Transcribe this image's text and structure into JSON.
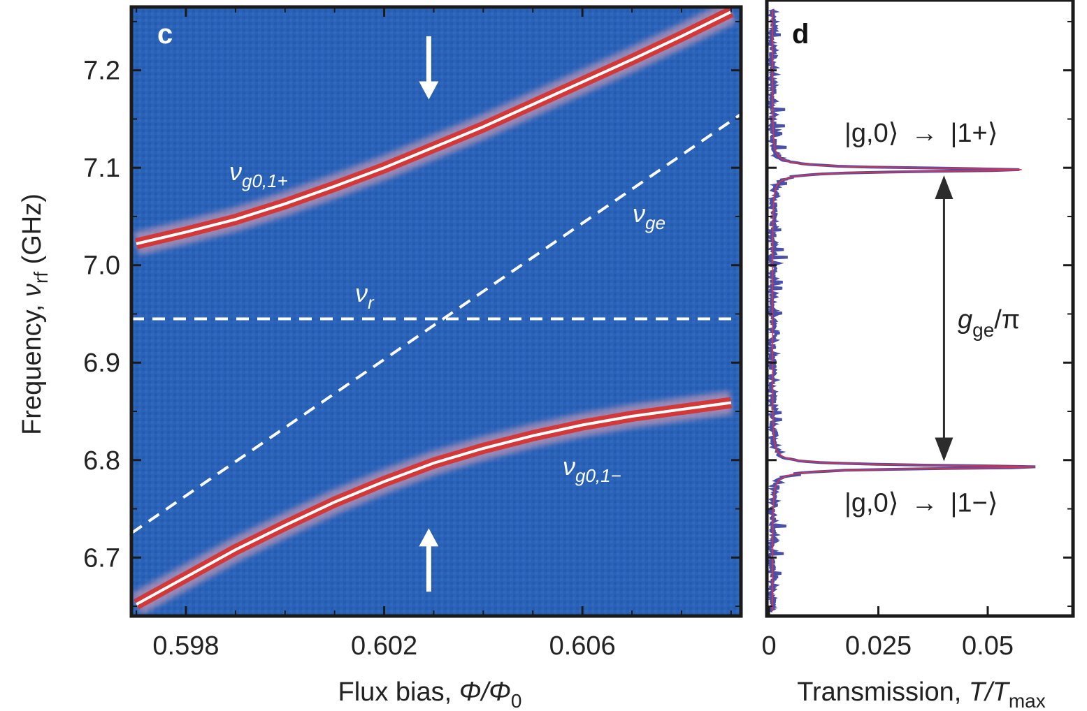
{
  "chart_data": [
    {
      "panel": "c",
      "type": "heatmap",
      "xlabel_prefix": "Flux bias, ",
      "xlabel_var": "Φ/Φ",
      "xlabel_sub": "0",
      "ylabel_prefix": "Frequency, ",
      "ylabel_var": "ν",
      "ylabel_sub": "rf",
      "ylabel_unit": " (GHz)",
      "xlim": [
        0.5969,
        0.6092
      ],
      "ylim": [
        6.64,
        7.265
      ],
      "x_ticks": [
        0.598,
        0.602,
        0.606
      ],
      "x_tick_labels": [
        "0.598",
        "0.602",
        "0.606"
      ],
      "y_ticks": [
        6.7,
        6.8,
        6.9,
        7.0,
        7.1,
        7.2
      ],
      "y_tick_labels": [
        "6.7",
        "6.8",
        "6.9",
        "7.0",
        "7.1",
        "7.2"
      ],
      "background_color": "#2a62b8",
      "resonance_color": "#d9302b",
      "series": [
        {
          "label_var": "ν",
          "label_sub": "g0,1+",
          "style": "solid-white",
          "x": [
            0.597,
            0.598,
            0.599,
            0.6,
            0.601,
            0.602,
            0.603,
            0.604,
            0.605,
            0.606,
            0.607,
            0.608,
            0.609
          ],
          "y": [
            7.022,
            7.034,
            7.047,
            7.063,
            7.081,
            7.1,
            7.121,
            7.142,
            7.165,
            7.188,
            7.211,
            7.235,
            7.26
          ]
        },
        {
          "label_var": "ν",
          "label_sub": "g0,1−",
          "style": "solid-white",
          "x": [
            0.597,
            0.598,
            0.599,
            0.6,
            0.601,
            0.602,
            0.603,
            0.604,
            0.605,
            0.606,
            0.607,
            0.608,
            0.609
          ],
          "y": [
            6.652,
            6.68,
            6.708,
            6.733,
            6.757,
            6.778,
            6.797,
            6.812,
            6.825,
            6.836,
            6.845,
            6.852,
            6.859
          ]
        },
        {
          "label_var": "ν",
          "label_sub": "ge",
          "style": "dashed-white",
          "x": [
            0.5969,
            0.6092
          ],
          "y": [
            6.725,
            7.155
          ]
        },
        {
          "label_var": "ν",
          "label_sub": "r",
          "style": "dashed-white",
          "x": [
            0.5969,
            0.6092
          ],
          "y": [
            6.945,
            6.945
          ]
        }
      ],
      "arrows": [
        {
          "direction": "down",
          "x": 0.6029,
          "y_from": 7.235,
          "y_to": 7.17
        },
        {
          "direction": "up",
          "x": 0.6029,
          "y_from": 6.665,
          "y_to": 6.73
        }
      ]
    },
    {
      "panel": "d",
      "type": "line",
      "xlabel_prefix": "Transmission, ",
      "xlabel_var": "T/T",
      "xlabel_sub": "max",
      "xlim": [
        -0.0005,
        0.0695
      ],
      "ylim": [
        6.64,
        7.265
      ],
      "x_ticks": [
        0,
        0.025,
        0.05
      ],
      "x_tick_labels": [
        "0",
        "0.025",
        "0.05"
      ],
      "line_color": "#4a4fa8",
      "fit_color": "#e0304a",
      "peaks": [
        {
          "frequency": 7.098,
          "transmission": 0.057,
          "state_label_left": "|g,0⟩",
          "state_label_right": "|1+⟩",
          "label_position": "above"
        },
        {
          "frequency": 6.793,
          "transmission": 0.06,
          "state_label_left": "|g,0⟩",
          "state_label_right": "|1−⟩",
          "label_position": "below"
        }
      ],
      "arrow_symbol": "→",
      "splitting_label_var": "g",
      "splitting_label_sub": "ge",
      "splitting_label_suffix": "/π",
      "splitting_arrow_x": 0.04
    }
  ]
}
